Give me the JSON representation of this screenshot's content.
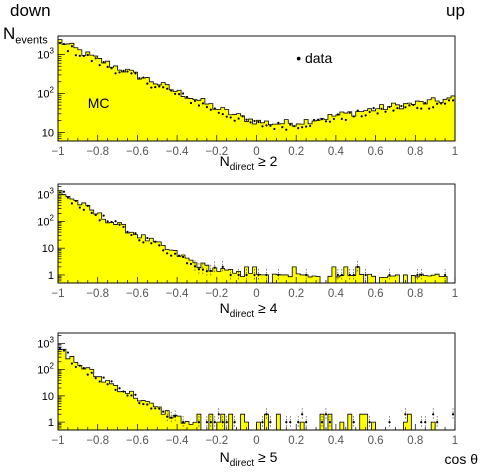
{
  "header": {
    "left": "down",
    "right": "up",
    "ylabel_main": "N",
    "ylabel_sub": "events"
  },
  "colors": {
    "mc_fill": "#ffff00",
    "mc_line": "#000000",
    "data_point": "#000000",
    "frame": "#000000",
    "tick_label": "#555555"
  },
  "chart_data": [
    {
      "type": "histogram",
      "panel": "top",
      "xlim": [
        -1,
        1
      ],
      "ylim": [
        6,
        3000
      ],
      "yscale": "log",
      "xticks": [
        "−1",
        "−0.8",
        "−0.6",
        "−0.4",
        "−0.2",
        "0",
        "0.2",
        "0.4",
        "0.6",
        "0.8",
        "1"
      ],
      "yticks": [
        {
          "label_base": "10",
          "label_exp": "3",
          "value": 1000
        },
        {
          "label_base": "10",
          "label_exp": "2",
          "value": 100
        },
        {
          "label_base": "10",
          "label_exp": "",
          "value": 10
        }
      ],
      "xlabel": {
        "base": "N",
        "sub": "direct",
        "suffix": " ≥ 2"
      },
      "legend": {
        "marker": "•",
        "label": "data",
        "position": "top-right"
      },
      "annotation": "MC",
      "mc_profile": [
        [
          -1.0,
          2400
        ],
        [
          -0.9,
          1300
        ],
        [
          -0.8,
          750
        ],
        [
          -0.7,
          470
        ],
        [
          -0.6,
          290
        ],
        [
          -0.5,
          185
        ],
        [
          -0.4,
          110
        ],
        [
          -0.3,
          70
        ],
        [
          -0.2,
          42
        ],
        [
          -0.1,
          27
        ],
        [
          0.0,
          19
        ],
        [
          0.1,
          17
        ],
        [
          0.2,
          18
        ],
        [
          0.3,
          22
        ],
        [
          0.4,
          27
        ],
        [
          0.5,
          33
        ],
        [
          0.6,
          40
        ],
        [
          0.7,
          48
        ],
        [
          0.8,
          55
        ],
        [
          0.9,
          63
        ],
        [
          1.0,
          75
        ]
      ],
      "data_offset": 0.85,
      "noise": 0.22
    },
    {
      "type": "histogram",
      "panel": "middle",
      "xlim": [
        -1,
        1
      ],
      "ylim": [
        0.5,
        2500
      ],
      "yscale": "log",
      "xticks": [
        "−1",
        "−0.8",
        "−0.6",
        "−0.4",
        "−0.2",
        "0",
        "0.2",
        "0.4",
        "0.6",
        "0.8",
        "1"
      ],
      "yticks": [
        {
          "label_base": "10",
          "label_exp": "3",
          "value": 1000
        },
        {
          "label_base": "10",
          "label_exp": "2",
          "value": 100
        },
        {
          "label_base": "10",
          "label_exp": "",
          "value": 10
        },
        {
          "label_base": "1",
          "label_exp": "",
          "value": 1
        }
      ],
      "xlabel": {
        "base": "N",
        "sub": "direct",
        "suffix": " ≥ 4"
      },
      "mc_profile": [
        [
          -1.0,
          1500
        ],
        [
          -0.9,
          520
        ],
        [
          -0.8,
          180
        ],
        [
          -0.7,
          75
        ],
        [
          -0.6,
          32
        ],
        [
          -0.5,
          14
        ],
        [
          -0.45,
          9
        ],
        [
          -0.4,
          6
        ],
        [
          -0.35,
          4
        ],
        [
          -0.3,
          2.5
        ],
        [
          -0.2,
          1.6
        ],
        [
          -0.1,
          1.1
        ],
        [
          0.0,
          0.9
        ],
        [
          0.5,
          0.8
        ],
        [
          1.0,
          0.8
        ]
      ],
      "data_offset": 0.9,
      "noise": 0.3
    },
    {
      "type": "histogram",
      "panel": "bottom",
      "xlim": [
        -1,
        1
      ],
      "ylim": [
        0.5,
        2500
      ],
      "yscale": "log",
      "xticks": [
        "−1",
        "−0.8",
        "−0.6",
        "−0.4",
        "−0.2",
        "0",
        "0.2",
        "0.4",
        "0.6",
        "0.8",
        "1"
      ],
      "yticks": [
        {
          "label_base": "10",
          "label_exp": "3",
          "value": 1000
        },
        {
          "label_base": "10",
          "label_exp": "2",
          "value": 100
        },
        {
          "label_base": "10",
          "label_exp": "",
          "value": 10
        },
        {
          "label_base": "1",
          "label_exp": "",
          "value": 1
        }
      ],
      "xlabel": {
        "base": "N",
        "sub": "direct",
        "suffix": " ≥ 5"
      },
      "extra_label": "cos θ",
      "mc_profile": [
        [
          -1.0,
          700
        ],
        [
          -0.95,
          350
        ],
        [
          -0.9,
          170
        ],
        [
          -0.8,
          55
        ],
        [
          -0.7,
          22
        ],
        [
          -0.6,
          9
        ],
        [
          -0.55,
          5
        ],
        [
          -0.5,
          3.2
        ],
        [
          -0.45,
          2.2
        ],
        [
          -0.4,
          1.5
        ],
        [
          -0.35,
          1.0
        ],
        [
          -0.3,
          0.7
        ],
        [
          -0.2,
          0.5
        ],
        [
          1.0,
          0.5
        ]
      ],
      "data_offset": 0.95,
      "noise": 0.35
    }
  ]
}
